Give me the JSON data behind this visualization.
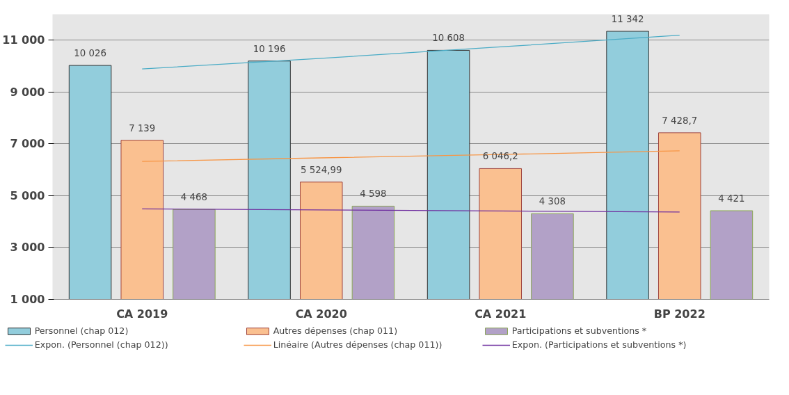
{
  "chart_data": {
    "type": "bar",
    "categories": [
      "CA 2019",
      "CA 2020",
      "CA 2021",
      "BP 2022"
    ],
    "series": [
      {
        "name": "Personnel (chap 012)",
        "color": "#92cddc",
        "values": [
          10026,
          10196,
          10608,
          11342
        ],
        "value_labels": [
          "10 026",
          "10 196",
          "10 608",
          "11 342"
        ]
      },
      {
        "name": "Autres dépenses (chap 011)",
        "color": "#fac090",
        "values": [
          7139,
          5524.99,
          6046.2,
          7428.7
        ],
        "value_labels": [
          "7 139",
          "5 524,99",
          "6 046,2",
          "7 428,7"
        ]
      },
      {
        "name": "Participations et subventions *",
        "color": "#b2a1c7",
        "values": [
          4468,
          4598,
          4308,
          4421
        ],
        "value_labels": [
          "4 468",
          "4 598",
          "4 308",
          "4 421"
        ]
      },
      {
        "name": "Expon. (Personnel (chap 012))",
        "type": "line",
        "color": "#4bacc6",
        "values": [
          9890,
          10300,
          10740,
          11190
        ]
      },
      {
        "name": "Linéaire (Autres dépenses (chap 011))",
        "type": "line",
        "color": "#f79646",
        "values": [
          6320,
          6460,
          6590,
          6730
        ]
      },
      {
        "name": "Expon. (Participations et subventions *)",
        "type": "line",
        "color": "#7030a0",
        "values": [
          4490,
          4450,
          4410,
          4370
        ]
      }
    ],
    "ylim": [
      1000,
      12000
    ],
    "yticks": [
      {
        "value": 1000,
        "label": "1 000"
      },
      {
        "value": 3000,
        "label": "3 000"
      },
      {
        "value": 5000,
        "label": "5 000"
      },
      {
        "value": 7000,
        "label": "7 000"
      },
      {
        "value": 9000,
        "label": "9 000"
      },
      {
        "value": 11000,
        "label": "11 000"
      }
    ],
    "grid": "y",
    "legend": "bottom",
    "marker": "none",
    "line_style": "solid"
  }
}
